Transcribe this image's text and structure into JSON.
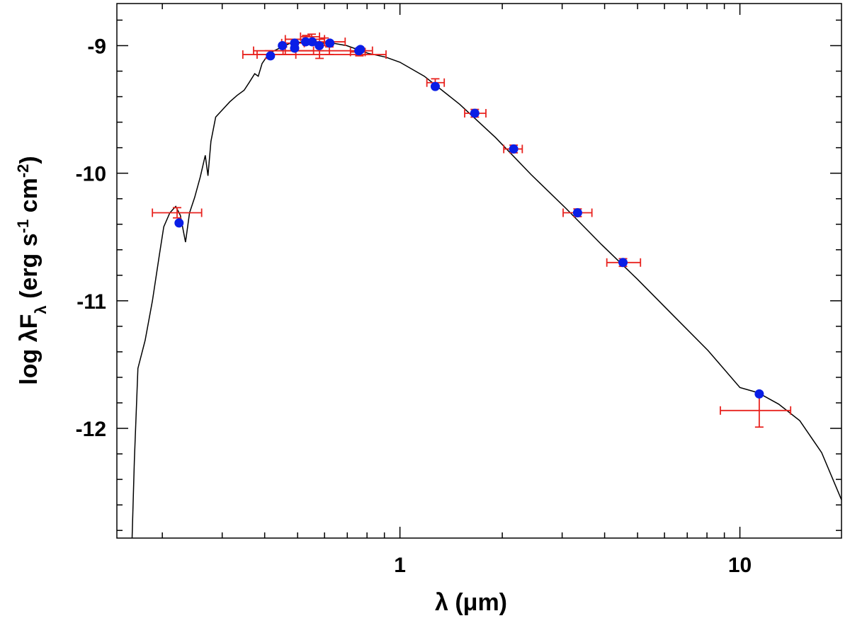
{
  "chart_data": {
    "type": "line",
    "xlabel": "λ (μm)",
    "ylabel_parts": [
      "log λF",
      "λ",
      " (erg s",
      "-1",
      " cm",
      "-2",
      ")"
    ],
    "xscale": "log",
    "xlim": [
      0.147,
      19.9
    ],
    "ylim": [
      -12.86,
      -8.67
    ],
    "xticks": [
      1,
      10
    ],
    "xminor_ticks": [
      0.2,
      0.3,
      0.4,
      0.5,
      0.6,
      0.7,
      0.8,
      0.9,
      2,
      3,
      4,
      5,
      6,
      7,
      8,
      9
    ],
    "yticks": [
      -9,
      -10,
      -11,
      -12
    ],
    "yminor_ticks": [
      -8.8,
      -9.2,
      -9.4,
      -9.6,
      -9.8,
      -10.2,
      -10.4,
      -10.6,
      -10.8,
      -11.2,
      -11.4,
      -11.6,
      -11.8,
      -12.2,
      -12.4,
      -12.6,
      -12.8
    ],
    "model": {
      "color": "#000000",
      "x": [
        0.163,
        0.1655,
        0.1695,
        0.178,
        0.187,
        0.196,
        0.202,
        0.2105,
        0.219,
        0.226,
        0.234,
        0.2405,
        0.249,
        0.2585,
        0.2675,
        0.2725,
        0.278,
        0.287,
        0.301,
        0.316,
        0.332,
        0.348,
        0.36,
        0.374,
        0.383,
        0.393,
        0.412,
        0.442,
        0.476,
        0.523,
        0.576,
        0.634,
        0.698,
        0.806,
        0.908,
        1.0,
        1.18,
        1.5,
        1.91,
        2.43,
        3.09,
        3.92,
        4.99,
        6.34,
        8.06,
        10.0,
        11.3,
        13.0,
        15.0,
        17.4,
        19.9
      ],
      "y": [
        -12.86,
        -12.25,
        -11.53,
        -11.31,
        -11.0,
        -10.64,
        -10.42,
        -10.31,
        -10.26,
        -10.33,
        -10.54,
        -10.31,
        -10.19,
        -10.03,
        -9.86,
        -10.02,
        -9.75,
        -9.56,
        -9.5,
        -9.44,
        -9.39,
        -9.35,
        -9.29,
        -9.22,
        -9.24,
        -9.14,
        -9.06,
        -9.02,
        -8.98,
        -8.97,
        -8.98,
        -8.98,
        -9.0,
        -9.06,
        -9.09,
        -9.13,
        -9.24,
        -9.46,
        -9.72,
        -10.01,
        -10.28,
        -10.56,
        -10.83,
        -11.11,
        -11.39,
        -11.68,
        -11.72,
        -11.81,
        -11.94,
        -12.19,
        -12.56
      ]
    },
    "photometry": {
      "color": "#e8231f",
      "x": [
        0.221,
        0.412,
        0.453,
        0.49,
        0.53,
        0.55,
        0.6,
        0.58,
        0.62,
        0.76,
        1.27,
        1.66,
        2.16,
        3.33,
        4.53,
        11.4
      ],
      "y": [
        -10.31,
        -9.07,
        -9.04,
        -8.98,
        -8.95,
        -8.93,
        -8.97,
        -9.07,
        -9.04,
        -9.05,
        -9.29,
        -9.53,
        -9.81,
        -10.31,
        -10.7,
        -11.86
      ],
      "x_low": [
        0.187,
        0.345,
        0.371,
        0.449,
        0.46,
        0.51,
        0.52,
        0.38,
        0.46,
        0.715,
        1.2,
        1.55,
        2.02,
        3.02,
        4.06,
        8.76
      ],
      "x_high": [
        0.261,
        0.494,
        0.557,
        0.523,
        0.6,
        0.58,
        0.69,
        0.91,
        0.83,
        0.79,
        1.35,
        1.79,
        2.29,
        3.67,
        5.1,
        14.1
      ],
      "y_err": [
        0.04,
        0.03,
        0.03,
        0.03,
        0.03,
        0.02,
        0.03,
        0.03,
        0.03,
        0.03,
        0.03,
        0.03,
        0.03,
        0.03,
        0.03,
        0.13
      ]
    },
    "synthetic": {
      "color": "#0a1ee6",
      "x": [
        0.224,
        0.416,
        0.451,
        0.49,
        0.49,
        0.528,
        0.552,
        0.579,
        0.622,
        0.757,
        0.765,
        1.27,
        1.66,
        2.16,
        3.33,
        4.53,
        11.4
      ],
      "y": [
        -10.39,
        -9.08,
        -9.0,
        -8.98,
        -9.02,
        -8.97,
        -8.97,
        -9.0,
        -8.98,
        -9.04,
        -9.03,
        -9.32,
        -9.53,
        -9.81,
        -10.31,
        -10.7,
        -11.73
      ]
    }
  }
}
